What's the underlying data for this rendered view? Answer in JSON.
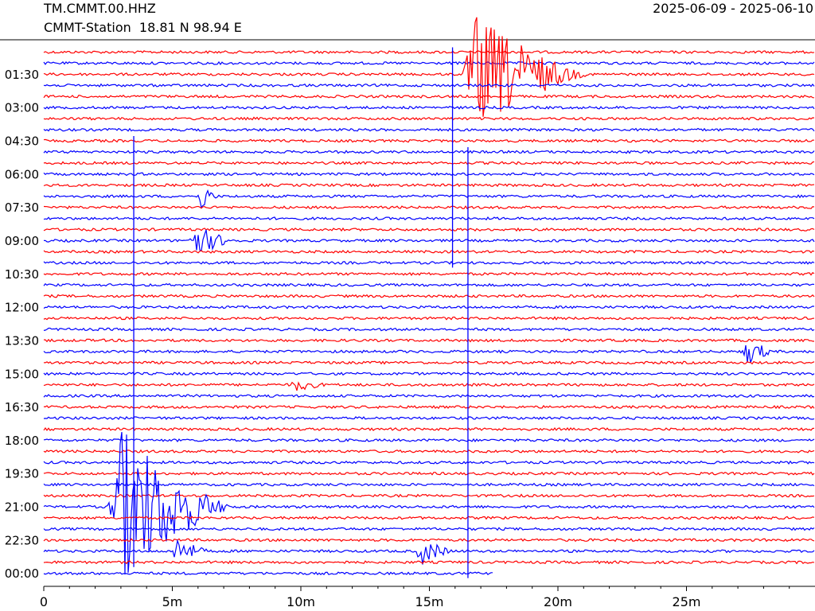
{
  "header": {
    "channel": "TM.CMMT.00.HHZ",
    "station": "CMMT-Station  18.81 N 98.94 E",
    "date_range": "2025-06-09 - 2025-06-10"
  },
  "chart_data": {
    "type": "line",
    "subtype": "helicorder",
    "trace_colors": [
      "#ff0000",
      "#0000ff"
    ],
    "row_minutes": 30,
    "row_count": 48,
    "xlim": [
      0,
      30
    ],
    "x_ticks": [
      {
        "value": 0,
        "label": "0"
      },
      {
        "value": 5,
        "label": "5m"
      },
      {
        "value": 10,
        "label": "10m"
      },
      {
        "value": 15,
        "label": "15m"
      },
      {
        "value": 20,
        "label": "20m"
      },
      {
        "value": 25,
        "label": "25m"
      }
    ],
    "y_labels": [
      {
        "row": 3,
        "label": "01:30"
      },
      {
        "row": 6,
        "label": "03:00"
      },
      {
        "row": 9,
        "label": "04:30"
      },
      {
        "row": 12,
        "label": "06:00"
      },
      {
        "row": 15,
        "label": "07:30"
      },
      {
        "row": 18,
        "label": "09:00"
      },
      {
        "row": 21,
        "label": "10:30"
      },
      {
        "row": 24,
        "label": "12:00"
      },
      {
        "row": 27,
        "label": "13:30"
      },
      {
        "row": 30,
        "label": "15:00"
      },
      {
        "row": 33,
        "label": "16:30"
      },
      {
        "row": 36,
        "label": "18:00"
      },
      {
        "row": 39,
        "label": "19:30"
      },
      {
        "row": 42,
        "label": "21:00"
      },
      {
        "row": 45,
        "label": "22:30"
      },
      {
        "row": 48,
        "label": "00:00"
      }
    ],
    "data_end": {
      "row": 48,
      "minute": 17.5
    },
    "events": [
      {
        "row": 3,
        "start_min": 16.3,
        "duration_min": 5.0,
        "amplitude": 6.0
      },
      {
        "row": 14,
        "start_min": 6.0,
        "duration_min": 0.8,
        "amplitude": 1.5
      },
      {
        "row": 18,
        "start_min": 5.6,
        "duration_min": 2.0,
        "amplitude": 1.6
      },
      {
        "row": 28,
        "start_min": 27.2,
        "duration_min": 1.3,
        "amplitude": 1.4
      },
      {
        "row": 31,
        "start_min": 9.6,
        "duration_min": 1.5,
        "amplitude": 0.6
      },
      {
        "row": 42,
        "start_min": 2.5,
        "duration_min": 5.0,
        "amplitude": 8.0
      },
      {
        "row": 46,
        "start_min": 5.0,
        "duration_min": 1.5,
        "amplitude": 1.4
      },
      {
        "row": 46,
        "start_min": 14.5,
        "duration_min": 1.5,
        "amplitude": 1.4
      }
    ],
    "spikes": [
      {
        "start_row": 9,
        "end_row": 47,
        "minute": 3.5
      },
      {
        "start_row": 1,
        "end_row": 20,
        "minute": 15.9
      },
      {
        "start_row": 10,
        "end_row": 48,
        "minute": 16.5
      }
    ]
  }
}
